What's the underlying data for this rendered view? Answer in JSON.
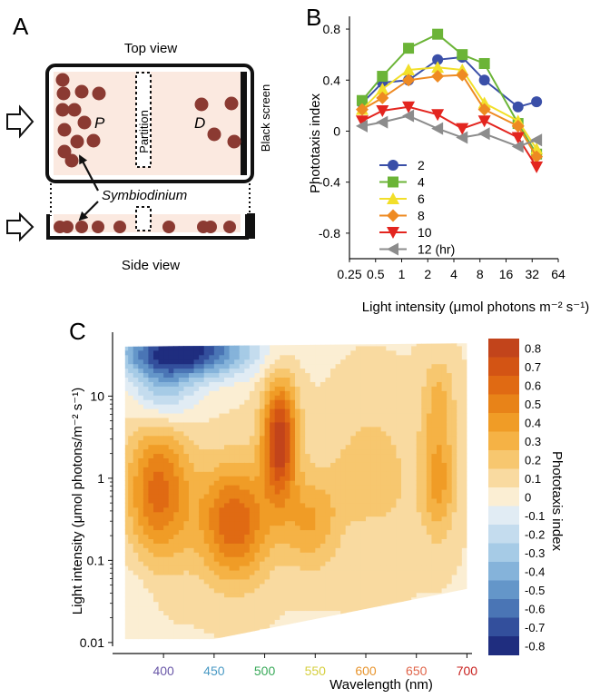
{
  "panel_a": {
    "letter": "A",
    "top_view": "Top view",
    "side_view": "Side view",
    "black_screen": "Black screen",
    "partition": "Partition",
    "zone_p": "P",
    "zone_d": "D",
    "organism": "Symbiodinium",
    "colors": {
      "cell": "#8b3a32",
      "chamber": "#fbe9e0",
      "frame": "#111111"
    }
  },
  "panel_b": {
    "letter": "B",
    "legend_unit": "(hr)"
  },
  "panel_c": {
    "letter": "C",
    "colorbar_label": "Phototaxis index",
    "colorbar_ticks": [
      "0.8",
      "0.7",
      "0.6",
      "0.5",
      "0.4",
      "0.3",
      "0.2",
      "0.1",
      "0",
      "-0.1",
      "-0.2",
      "-0.3",
      "-0.4",
      "-0.5",
      "-0.6",
      "-0.7",
      "-0.8"
    ],
    "colorbar_colors": [
      "#c2441b",
      "#d35414",
      "#e06a13",
      "#e88318",
      "#f09c26",
      "#f5b245",
      "#f7c76f",
      "#f9daa0",
      "#fbeed3",
      "#e1ecf4",
      "#c4dcee",
      "#a6cbe6",
      "#85b3da",
      "#6496c9",
      "#4a75b5",
      "#334f9c",
      "#1f2d7f"
    ],
    "x_tick_colors": [
      "#6a58a8",
      "#4a9ac4",
      "#3aaa5a",
      "#d6cf3f",
      "#e8952f",
      "#e0654a",
      "#c8201e"
    ]
  },
  "chart_data": [
    {
      "type": "line",
      "panel": "B",
      "xlabel": "Light intensity (μmol photons m⁻² s⁻¹)",
      "ylabel": "Phototaxis index",
      "x_scale": "log2",
      "xlim": [
        0.25,
        64
      ],
      "ylim": [
        -1.0,
        0.9
      ],
      "x_ticks": [
        0.25,
        0.5,
        1,
        2,
        4,
        8,
        16,
        32,
        64
      ],
      "x_tick_labels": [
        "0.25",
        "0.5",
        "1",
        "2",
        "4",
        "8",
        "16",
        "32",
        "64"
      ],
      "y_ticks": [
        0.8,
        0.4,
        0,
        -0.4,
        -0.8
      ],
      "y_tick_labels": [
        "0.8",
        "0.4",
        "0",
        "-0.4",
        "-0.8"
      ],
      "x": [
        0.35,
        0.6,
        1.2,
        2.6,
        5,
        9,
        22,
        36
      ],
      "legend_position": "bottom-left",
      "series": [
        {
          "name": "2",
          "color": "#3a4fa8",
          "marker": "circle",
          "values": [
            0.22,
            0.38,
            0.4,
            0.56,
            0.58,
            0.4,
            0.19,
            0.23
          ]
        },
        {
          "name": "4",
          "color": "#6bb437",
          "marker": "square",
          "values": [
            0.24,
            0.43,
            0.65,
            0.76,
            0.6,
            0.53,
            0.06,
            -0.18
          ]
        },
        {
          "name": "6",
          "color": "#f2df2a",
          "marker": "triangle-up",
          "values": [
            0.17,
            0.33,
            0.48,
            0.5,
            0.48,
            0.22,
            0.08,
            -0.14
          ]
        },
        {
          "name": "8",
          "color": "#ee8a22",
          "marker": "diamond",
          "values": [
            0.17,
            0.26,
            0.4,
            0.43,
            0.44,
            0.17,
            0.04,
            -0.2
          ]
        },
        {
          "name": "10",
          "color": "#e3251f",
          "marker": "triangle-down",
          "values": [
            0.08,
            0.16,
            0.19,
            0.13,
            0.02,
            0.08,
            -0.05,
            -0.28
          ]
        },
        {
          "name": "12",
          "color": "#8c8c8c",
          "marker": "triangle-left",
          "values": [
            0.04,
            0.07,
            0.12,
            0.02,
            -0.05,
            -0.02,
            -0.12,
            -0.07
          ]
        }
      ]
    },
    {
      "type": "heatmap",
      "panel": "C",
      "xlabel": "Wavelength (nm)",
      "ylabel": "Light intensity (μmol photons/m⁻² s⁻¹)",
      "x_ticks": [
        400,
        450,
        500,
        550,
        600,
        650,
        700
      ],
      "x_tick_labels": [
        "400",
        "450",
        "500",
        "550",
        "600",
        "650",
        "700"
      ],
      "y_scale": "log10",
      "y_ticks": [
        0.01,
        0.1,
        1,
        10
      ],
      "y_tick_labels": [
        "0.01",
        "0.1",
        "1",
        "10"
      ],
      "xlim": [
        355,
        705
      ],
      "ylim": [
        0.009,
        60
      ],
      "zlim": [
        -0.8,
        0.8
      ],
      "hotspots": [
        {
          "wavelength": 515,
          "intensity": 3.0,
          "index": 0.8,
          "sx": 12,
          "sy": 0.5
        },
        {
          "wavelength": 470,
          "intensity": 0.3,
          "index": 0.6,
          "sx": 25,
          "sy": 0.5
        },
        {
          "wavelength": 395,
          "intensity": 0.7,
          "index": 0.55,
          "sx": 22,
          "sy": 0.6
        },
        {
          "wavelength": 545,
          "intensity": 0.3,
          "index": 0.3,
          "sx": 20,
          "sy": 0.4
        },
        {
          "wavelength": 605,
          "intensity": 0.9,
          "index": 0.18,
          "sx": 30,
          "sy": 0.7
        },
        {
          "wavelength": 672,
          "intensity": 1.0,
          "index": 0.35,
          "sx": 12,
          "sy": 0.5
        },
        {
          "wavelength": 672,
          "intensity": 10,
          "index": 0.2,
          "sx": 12,
          "sy": 0.35
        },
        {
          "wavelength": 420,
          "intensity": 35,
          "index": -0.85,
          "sx": 45,
          "sy": 0.22
        },
        {
          "wavelength": 400,
          "intensity": 12,
          "index": -0.35,
          "sx": 22,
          "sy": 0.3
        },
        {
          "wavelength": 600,
          "intensity": 0.2,
          "index": -0.06,
          "sx": 25,
          "sy": 0.25
        },
        {
          "wavelength": 370,
          "intensity": 0.04,
          "index": -0.08,
          "sx": 18,
          "sy": 0.4
        }
      ]
    }
  ]
}
